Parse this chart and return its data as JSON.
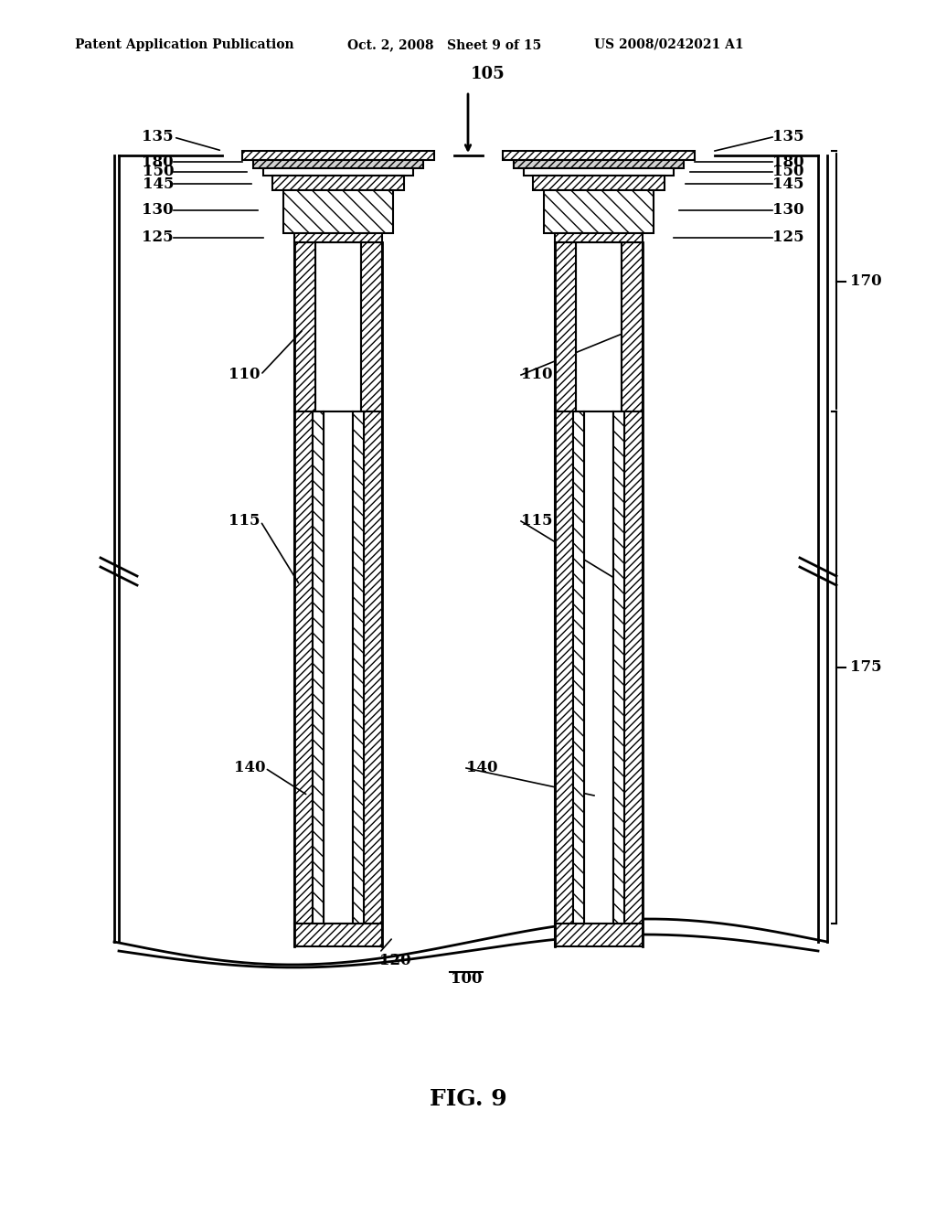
{
  "title": "FIG. 9",
  "header_left": "Patent Application Publication",
  "header_mid": "Oct. 2, 2008   Sheet 9 of 15",
  "header_right": "US 2008/0242021 A1",
  "bg_color": "#ffffff",
  "line_color": "#000000",
  "hatch_color": "#000000",
  "fig_label": "FIG. 9",
  "labels": {
    "135_left": "135",
    "180_left": "180",
    "150_left": "150",
    "145_left": "145",
    "130_left": "130",
    "125_left": "125",
    "110_left": "110",
    "115_left": "115",
    "140_left": "140",
    "120": "120",
    "100": "100",
    "105": "105",
    "110_right": "110",
    "115_right": "115",
    "140_right": "140",
    "135_right": "135",
    "180_right": "180",
    "150_right": "150",
    "145_right": "145",
    "130_right": "130",
    "125_right": "125",
    "170": "170",
    "175": "175"
  }
}
